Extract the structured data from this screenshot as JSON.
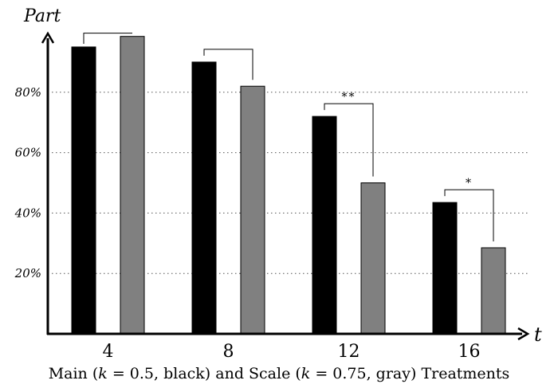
{
  "chart_data": {
    "type": "bar",
    "ylabel": "Part",
    "xlabel": "t",
    "categories": [
      "4",
      "8",
      "12",
      "16"
    ],
    "series": [
      {
        "color": "#000000",
        "values": [
          95,
          90,
          72,
          43.5
        ]
      },
      {
        "color": "#808080",
        "values": [
          98.5,
          82,
          50,
          28.5
        ]
      }
    ],
    "yticks": [
      20,
      40,
      60,
      80
    ],
    "ytick_labels": [
      "20%",
      "40%",
      "60%",
      "80%"
    ],
    "ylim": [
      0,
      100
    ],
    "grid": "dotted horizontal",
    "significance": [
      "",
      "",
      "**",
      "*"
    ]
  },
  "caption": {
    "part1": "Main (",
    "k1_var": "k",
    "part2": " = 0.5, black) and Scale (",
    "k2_var": "k",
    "part3": " = 0.75, gray) Treatments"
  }
}
